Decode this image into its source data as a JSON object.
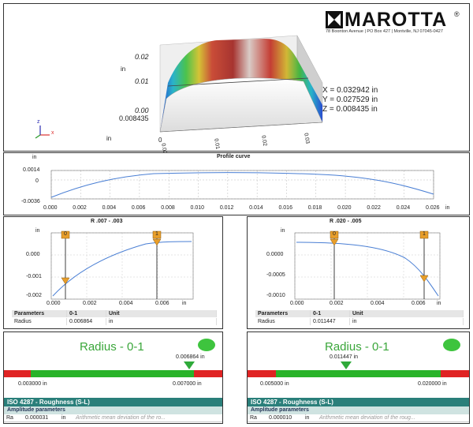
{
  "header": {
    "logo_text": "MAROTTA",
    "registered": "®",
    "address": "78 Boonton Avenue | PO Box 427 | Montville, NJ 07045-0427"
  },
  "surface3d": {
    "z_ticks": [
      "0.02",
      "0.01",
      "0.00"
    ],
    "z_unit": "in",
    "z_min": "0.008435",
    "y_unit": "in",
    "x_ticks": [
      "0",
      "0.00",
      "0.01",
      "0.02",
      "0.03"
    ],
    "readout_x": "X = 0.032942 in",
    "readout_y": "Y = 0.027529 in",
    "readout_z": "Z = 0.008435 in",
    "axis_x_label": "x",
    "axis_z_label": "z"
  },
  "profile": {
    "title": "Profile curve",
    "unit": "in",
    "y_ticks": [
      "0.0014",
      "0",
      "-0.0036"
    ],
    "x_ticks": [
      "0.000",
      "0.002",
      "0.004",
      "0.006",
      "0.008",
      "0.010",
      "0.012",
      "0.014",
      "0.016",
      "0.018",
      "0.020",
      "0.022",
      "0.024",
      "0.026"
    ],
    "x_unit": "in"
  },
  "left_panel": {
    "title": "R .007 - .003",
    "unit": "in",
    "y_ticks": [
      "0.000",
      "-0.001",
      "-0.002"
    ],
    "x_ticks": [
      "0.000",
      "0.002",
      "0.004",
      "0.006"
    ],
    "x_unit": "in",
    "marker_0": "0",
    "marker_1": "1",
    "table_headers": [
      "Parameters",
      "0-1",
      "Unit"
    ],
    "table_row": [
      "Radius",
      "0.006864",
      "in"
    ],
    "radius_title": "Radius - 0-1",
    "radius_value": "0.006864 in",
    "scale_min": "0.003000 in",
    "scale_max": "0.007000 in",
    "iso_title": "ISO 4287 - Roughness (S-L)",
    "amp_title": "Amplitude parameters",
    "ra_label": "Ra",
    "ra_value": "0.000031",
    "ra_unit": "in",
    "ra_desc": "Arithmetic mean deviation of the ro..."
  },
  "right_panel": {
    "title": "R .020 - .005",
    "unit": "in",
    "y_ticks": [
      "0.0000",
      "-0.0005",
      "-0.0010"
    ],
    "x_ticks": [
      "0.000",
      "0.002",
      "0.004",
      "0.006"
    ],
    "x_unit": "in",
    "marker_0": "0",
    "marker_1": "1",
    "table_headers": [
      "Parameters",
      "0-1",
      "Unit"
    ],
    "table_row": [
      "Radius",
      "0.011447",
      "in"
    ],
    "radius_title": "Radius - 0-1",
    "radius_value": "0.011447 in",
    "scale_min": "0.005000 in",
    "scale_max": "0.020000 in",
    "iso_title": "ISO 4287 - Roughness (S-L)",
    "amp_title": "Amplitude parameters",
    "ra_label": "Ra",
    "ra_value": "0.000010",
    "ra_unit": "in",
    "ra_desc": "Arithmetic mean deviation of the roug..."
  }
}
